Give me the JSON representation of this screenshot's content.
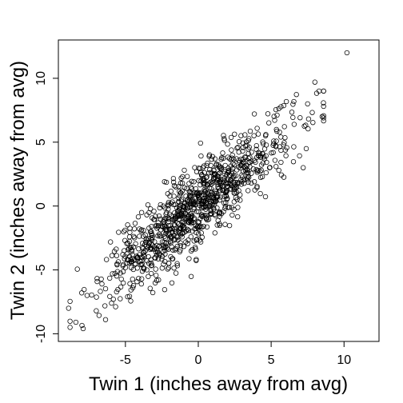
{
  "chart_data": {
    "type": "scatter",
    "title": "",
    "xlabel": "Twin 1 (inches away from avg)",
    "ylabel": "Twin 2 (inches away from avg)",
    "xlim": [
      -9.6,
      12.4
    ],
    "ylim": [
      -10.6,
      13.0
    ],
    "xticks": [
      -5,
      0,
      5,
      10
    ],
    "yticks": [
      -10,
      -5,
      0,
      5,
      10
    ],
    "grid": false,
    "legend": "none",
    "n_points": 1000,
    "correlation": 0.88,
    "x_sd": 3.2,
    "y_sd": 3.3,
    "seed": 7,
    "extreme_points": [
      {
        "x": 10.2,
        "y": 12.0
      },
      {
        "x": 8.0,
        "y": 9.7
      },
      {
        "x": 7.5,
        "y": 8.0
      },
      {
        "x": 8.5,
        "y": 7.0
      },
      {
        "x": 7.2,
        "y": 3.0
      },
      {
        "x": -8.9,
        "y": -8.0
      },
      {
        "x": -8.4,
        "y": -9.1
      },
      {
        "x": -7.9,
        "y": -9.6
      },
      {
        "x": -7.0,
        "y": -8.2
      },
      {
        "x": -8.0,
        "y": -6.8
      }
    ]
  }
}
